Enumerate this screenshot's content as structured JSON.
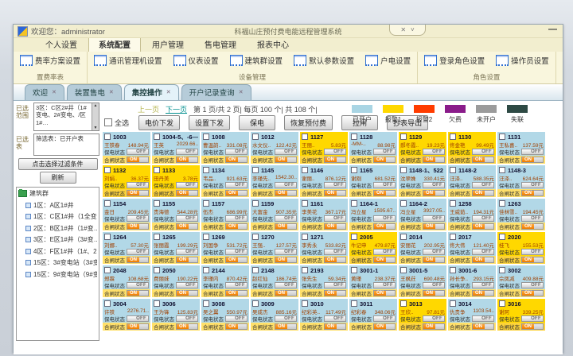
{
  "window": {
    "welcome": "欢迎您：administrator",
    "title": "科福山庄预付费电能远程管理系统",
    "controls": {
      "close": "✕",
      "collapse": "˅",
      "minimize": "—"
    }
  },
  "menu": {
    "items": [
      {
        "label": "个人设置",
        "active": false
      },
      {
        "label": "系统配置",
        "active": true
      },
      {
        "label": "用户管理",
        "active": false
      },
      {
        "label": "售电管理",
        "active": false
      },
      {
        "label": "报表中心",
        "active": false
      }
    ]
  },
  "ribbon": {
    "groups": [
      {
        "label": "置费率表",
        "buttons": [
          "费率方案设置"
        ]
      },
      {
        "label": "设备管理",
        "buttons": [
          "通讯管理机设置",
          "仪表设置",
          "建筑群设置",
          "默认参数设置",
          "户电设置"
        ]
      },
      {
        "label": "角色设置",
        "buttons": [
          "登录角色设置",
          "操作员设置"
        ]
      }
    ]
  },
  "tabs": [
    {
      "label": "欢迎",
      "active": false
    },
    {
      "label": "装置售电",
      "active": false
    },
    {
      "label": "集控操作",
      "active": true
    },
    {
      "label": "开户记录查询",
      "active": false
    }
  ],
  "sidebar": {
    "range_label": "已选范围",
    "range_value": "3区：C区2#井（1#变电、2#变电、/区1#…",
    "table_label": "已选表",
    "table_value": "筛选表：已开户表",
    "filter_button": "点击选择过滤条件",
    "refresh_button": "刷新",
    "tree": {
      "root": "建筑群",
      "items": [
        "1区：A区1#井",
        "1区：C区1#井（1全变…",
        "2区：B区1#井（1#变…",
        "3区：E区1#井（3#变…",
        "4区：F区1#井（1#、2…",
        "15区：3#变电站（3#变…",
        "15区：9#变电站（9#变…"
      ]
    }
  },
  "toolbar": {
    "pager": {
      "prev": "上一页",
      "next": "下一页",
      "info": "第 1 页/共 2 页| 每页 100 个| 共 108 个|"
    },
    "select_all": "全选",
    "buttons": [
      "电价下发",
      "设置下发",
      "保电",
      "恢复预付费",
      "拉闸",
      "抄表导出"
    ]
  },
  "legend": [
    {
      "label": "已开户",
      "color": "#a9d5e4"
    },
    {
      "label": "报警1",
      "color": "#ffd800"
    },
    {
      "label": "报警2",
      "color": "#ff3c00"
    },
    {
      "label": "欠费",
      "color": "#8a1c8a"
    },
    {
      "label": "未开户",
      "color": "#9b9b9b"
    },
    {
      "label": "失联",
      "color": "#2e4a44"
    }
  ],
  "card_labels": {
    "protect": "保电状态",
    "switch": "合闸状态",
    "off": "OFF",
    "on": "ON"
  },
  "cards": [
    {
      "id": "1003",
      "name": "王铁春",
      "balance": "148.94元",
      "alarm": false
    },
    {
      "id": "1004-5、-6—",
      "name": "王英",
      "balance": "2029.66..",
      "alarm": false
    },
    {
      "id": "1008",
      "name": "曹温韵..",
      "balance": "331.08元",
      "alarm": false
    },
    {
      "id": "1012",
      "name": "水文仪..",
      "balance": "122.42元",
      "alarm": false
    },
    {
      "id": "1127",
      "name": "王丽..",
      "balance": "5.83元",
      "alarm": true
    },
    {
      "id": "1128",
      "name": "-MM-..",
      "balance": "88.98元",
      "alarm": false
    },
    {
      "id": "1129",
      "name": "郝冬霞..",
      "balance": "19.23元",
      "alarm": true
    },
    {
      "id": "1130",
      "name": "佟金艳",
      "balance": "99.49元",
      "alarm": true
    },
    {
      "id": "1131",
      "name": "王私喜..",
      "balance": "137.59元",
      "alarm": false
    },
    {
      "id": "1132",
      "name": "刘娟..",
      "balance": "36.37元",
      "alarm": true
    },
    {
      "id": "1133",
      "name": "田丹美",
      "balance": "3.78元",
      "alarm": true
    },
    {
      "id": "1134",
      "name": "韦品..",
      "balance": "921.63元",
      "alarm": false
    },
    {
      "id": "1145",
      "name": "李瑾先..",
      "balance": "1542.30..",
      "alarm": false
    },
    {
      "id": "1146",
      "name": "谢丽..",
      "balance": "876.12元",
      "alarm": false
    },
    {
      "id": "1165",
      "name": "谢刚",
      "balance": "681.52元",
      "alarm": false
    },
    {
      "id": "1148-1、522",
      "name": "沈翠姝",
      "balance": "330.41元",
      "alarm": false
    },
    {
      "id": "1148-2",
      "name": "汪泽..",
      "balance": "588.35元",
      "alarm": false
    },
    {
      "id": "1148-3",
      "name": "汪泽..",
      "balance": "624.64元",
      "alarm": false
    },
    {
      "id": "1154",
      "name": "金日",
      "balance": "209.45元",
      "alarm": false
    },
    {
      "id": "1155",
      "name": "贵海德",
      "balance": "544.28元",
      "alarm": false
    },
    {
      "id": "1157",
      "name": "伍杰",
      "balance": "686.99元",
      "alarm": false
    },
    {
      "id": "1159",
      "name": "大富金",
      "balance": "907.35元",
      "alarm": false
    },
    {
      "id": "1161",
      "name": "李美花",
      "balance": "367.17元",
      "alarm": false
    },
    {
      "id": "1164-1",
      "name": "冯立星",
      "balance": "1595.67..",
      "alarm": false
    },
    {
      "id": "1164-2",
      "name": "冯立星",
      "balance": "3927.05..",
      "alarm": false
    },
    {
      "id": "1258",
      "name": "王威茹..",
      "balance": "194.31元",
      "alarm": false
    },
    {
      "id": "1263",
      "name": "佳林雪..",
      "balance": "194.45元",
      "alarm": false
    },
    {
      "id": "1264",
      "name": "刘娜..",
      "balance": "57.30元",
      "alarm": false
    },
    {
      "id": "1265",
      "name": "张丽霞",
      "balance": "199.29元",
      "alarm": false
    },
    {
      "id": "1269",
      "name": "刘国争",
      "balance": "531.72元",
      "alarm": false
    },
    {
      "id": "1270",
      "name": "王强..",
      "balance": "127.57元",
      "alarm": false
    },
    {
      "id": "1271",
      "name": "李秀永",
      "balance": "533.82元",
      "alarm": false
    },
    {
      "id": "2005",
      "name": "牛记申",
      "balance": "479.87元",
      "alarm": true
    },
    {
      "id": "2014",
      "name": "安丽花",
      "balance": "202.95元",
      "alarm": false
    },
    {
      "id": "2017",
      "name": "佟大伟",
      "balance": "121.40元",
      "alarm": false
    },
    {
      "id": "2020",
      "name": "桂飞",
      "balance": "155.53元",
      "alarm": true
    },
    {
      "id": "2048",
      "name": "郑霖",
      "balance": "108.68元",
      "alarm": false
    },
    {
      "id": "2050",
      "name": "费丽妹",
      "balance": "190.22元",
      "alarm": false
    },
    {
      "id": "2144",
      "name": "李瑾内",
      "balance": "870.42元",
      "alarm": false
    },
    {
      "id": "2148",
      "name": "赵红仙",
      "balance": "186.74元",
      "alarm": false
    },
    {
      "id": "2193",
      "name": "张先生",
      "balance": "59.34元",
      "alarm": false
    },
    {
      "id": "3001-1",
      "name": "黄瑾",
      "balance": "238.37元",
      "alarm": false
    },
    {
      "id": "3001-5",
      "name": "王枫荭",
      "balance": "690.48元",
      "alarm": false
    },
    {
      "id": "3001-6",
      "name": "孙长争..",
      "balance": "293.15元",
      "alarm": false
    },
    {
      "id": "3002",
      "name": "佘凤减",
      "balance": "409.88元",
      "alarm": false
    },
    {
      "id": "3004",
      "name": "许铁",
      "balance": "2276.71..",
      "alarm": false
    },
    {
      "id": "3006",
      "name": "王为锋",
      "balance": "125.83元",
      "alarm": false
    },
    {
      "id": "3008",
      "name": "吴之翼",
      "balance": "550.97元",
      "alarm": false
    },
    {
      "id": "3009",
      "name": "吴成杰",
      "balance": "885.16元",
      "alarm": false
    },
    {
      "id": "3010",
      "name": "纪彩英..",
      "balance": "117.49元",
      "alarm": false
    },
    {
      "id": "3011",
      "name": "纪彩春",
      "balance": "348.06元",
      "alarm": false
    },
    {
      "id": "3013",
      "name": "王欣..",
      "balance": "97.81元",
      "alarm": true
    },
    {
      "id": "3014",
      "name": "仇贵争",
      "balance": "1103.54..",
      "alarm": false
    },
    {
      "id": "3016",
      "name": "谢阿",
      "balance": "339.25元",
      "alarm": true
    }
  ]
}
